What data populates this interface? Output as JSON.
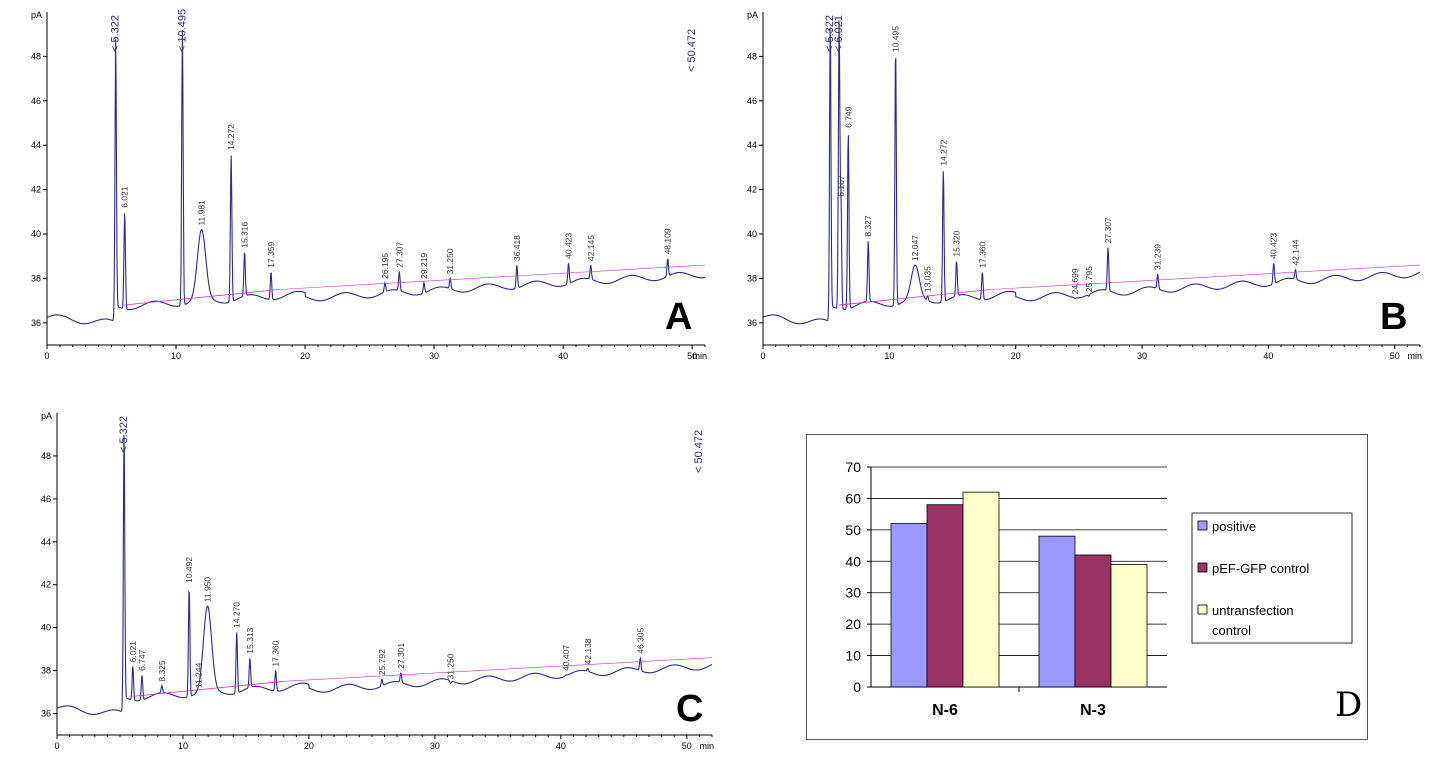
{
  "chart_data": [
    {
      "type": "line",
      "panel": "A",
      "y_unit": "pA",
      "x_unit": "min",
      "xlim": [
        0,
        51
      ],
      "ylim": [
        35,
        50
      ],
      "x_ticks": [
        "0",
        "10",
        "20",
        "30",
        "40",
        "50"
      ],
      "y_ticks": [
        "36",
        "38",
        "40",
        "42",
        "44",
        "46",
        "48"
      ],
      "peaks": [
        {
          "t": 5.322,
          "label": "5.322",
          "h": 48.8
        },
        {
          "t": 6.021,
          "label": "6.021",
          "h": 41
        },
        {
          "t": 10.495,
          "label": "10.495",
          "h": 49.2
        },
        {
          "t": 11.981,
          "label": "11.981",
          "h": 40.2
        },
        {
          "t": 14.272,
          "label": "14.272",
          "h": 43.6
        },
        {
          "t": 15.316,
          "label": "15.316",
          "h": 39.2
        },
        {
          "t": 17.359,
          "label": "17.359",
          "h": 38.3
        },
        {
          "t": 26.195,
          "label": "26.195",
          "h": 37.8
        },
        {
          "t": 27.307,
          "label": "27.307",
          "h": 38.3
        },
        {
          "t": 29.219,
          "label": "29.219",
          "h": 37.8
        },
        {
          "t": 31.25,
          "label": "31.250",
          "h": 38
        },
        {
          "t": 36.418,
          "label": "36.418",
          "h": 38.6
        },
        {
          "t": 40.423,
          "label": "40.423",
          "h": 38.7
        },
        {
          "t": 42.145,
          "label": "42.145",
          "h": 38.6
        },
        {
          "t": 48.109,
          "label": "48.109",
          "h": 38.9
        }
      ],
      "offscale_label": "< 50.472",
      "corner_letter": "A"
    },
    {
      "type": "line",
      "panel": "B",
      "y_unit": "pA",
      "x_unit": "min",
      "xlim": [
        0,
        52
      ],
      "ylim": [
        35,
        50
      ],
      "x_ticks": [
        "0",
        "10",
        "20",
        "30",
        "40",
        "50"
      ],
      "y_ticks": [
        "36",
        "38",
        "40",
        "42",
        "44",
        "46",
        "48"
      ],
      "peaks": [
        {
          "t": 5.322,
          "label": "5.322",
          "h": 49.5
        },
        {
          "t": 6.021,
          "label": "6.021",
          "h": 49.5
        },
        {
          "t": 6.167,
          "label": "6.167",
          "h": 41.5
        },
        {
          "t": 6.749,
          "label": "6.749",
          "h": 44.6
        },
        {
          "t": 8.327,
          "label": "8.327",
          "h": 39.7
        },
        {
          "t": 10.495,
          "label": "10.495",
          "h": 48.4
        },
        {
          "t": 12.047,
          "label": "12.047",
          "h": 38.6
        },
        {
          "t": 13.035,
          "label": "13.035",
          "h": 37.2
        },
        {
          "t": 14.272,
          "label": "14.272",
          "h": 42.9
        },
        {
          "t": 15.32,
          "label": "15.320",
          "h": 38.8
        },
        {
          "t": 17.36,
          "label": "17.360",
          "h": 38.3
        },
        {
          "t": 24.699,
          "label": "24.699",
          "h": 37.1
        },
        {
          "t": 25.795,
          "label": "25.795",
          "h": 37.2
        },
        {
          "t": 27.307,
          "label": "27.307",
          "h": 39.4
        },
        {
          "t": 31.239,
          "label": "31.239",
          "h": 38.2
        },
        {
          "t": 40.423,
          "label": "40.423",
          "h": 38.7
        },
        {
          "t": 42.144,
          "label": "42.144",
          "h": 38.4
        }
      ],
      "offscale_label": "",
      "corner_letter": "B"
    },
    {
      "type": "line",
      "panel": "C",
      "y_unit": "pA",
      "x_unit": "min",
      "xlim": [
        0,
        52
      ],
      "ylim": [
        35,
        50
      ],
      "x_ticks": [
        "0",
        "10",
        "20",
        "30",
        "40",
        "50"
      ],
      "y_ticks": [
        "36",
        "38",
        "40",
        "42",
        "44",
        "46",
        "48"
      ],
      "peaks": [
        {
          "t": 5.322,
          "label": "5.322",
          "h": 49.2
        },
        {
          "t": 6.021,
          "label": "6.021",
          "h": 38.2
        },
        {
          "t": 6.747,
          "label": "6.747",
          "h": 37.8
        },
        {
          "t": 8.325,
          "label": "8.325",
          "h": 37.3
        },
        {
          "t": 10.492,
          "label": "10.492",
          "h": 41.9
        },
        {
          "t": 11.244,
          "label": "11.244",
          "h": 37
        },
        {
          "t": 11.95,
          "label": "11.950",
          "h": 41
        },
        {
          "t": 14.27,
          "label": "14.270",
          "h": 39.8
        },
        {
          "t": 15.313,
          "label": "15.313",
          "h": 38.6
        },
        {
          "t": 17.36,
          "label": "17.360",
          "h": 38
        },
        {
          "t": 25.792,
          "label": "25.792",
          "h": 37.6
        },
        {
          "t": 27.301,
          "label": "27.301",
          "h": 37.9
        },
        {
          "t": 31.25,
          "label": "31.250",
          "h": 37.4
        },
        {
          "t": 40.407,
          "label": "40.407",
          "h": 37.8
        },
        {
          "t": 42.138,
          "label": "42.138",
          "h": 38.1
        },
        {
          "t": 46.305,
          "label": "46.305",
          "h": 38.6
        }
      ],
      "offscale_label": "< 50.472",
      "corner_letter": "C"
    },
    {
      "type": "bar",
      "panel": "D",
      "categories": [
        "N-6",
        "N-3"
      ],
      "series": [
        {
          "name": "positive",
          "values": [
            52,
            48
          ],
          "color": "#9999ff"
        },
        {
          "name": "pEF-GFP control",
          "values": [
            58,
            42
          ],
          "color": "#993366"
        },
        {
          "name": "untransfection control",
          "values": [
            62,
            39
          ],
          "color": "#ffffcc"
        }
      ],
      "ylim": [
        0,
        70
      ],
      "y_ticks": [
        "0",
        "10",
        "20",
        "30",
        "40",
        "50",
        "60",
        "70"
      ],
      "legend_position": "right",
      "corner_letter": "D"
    }
  ]
}
